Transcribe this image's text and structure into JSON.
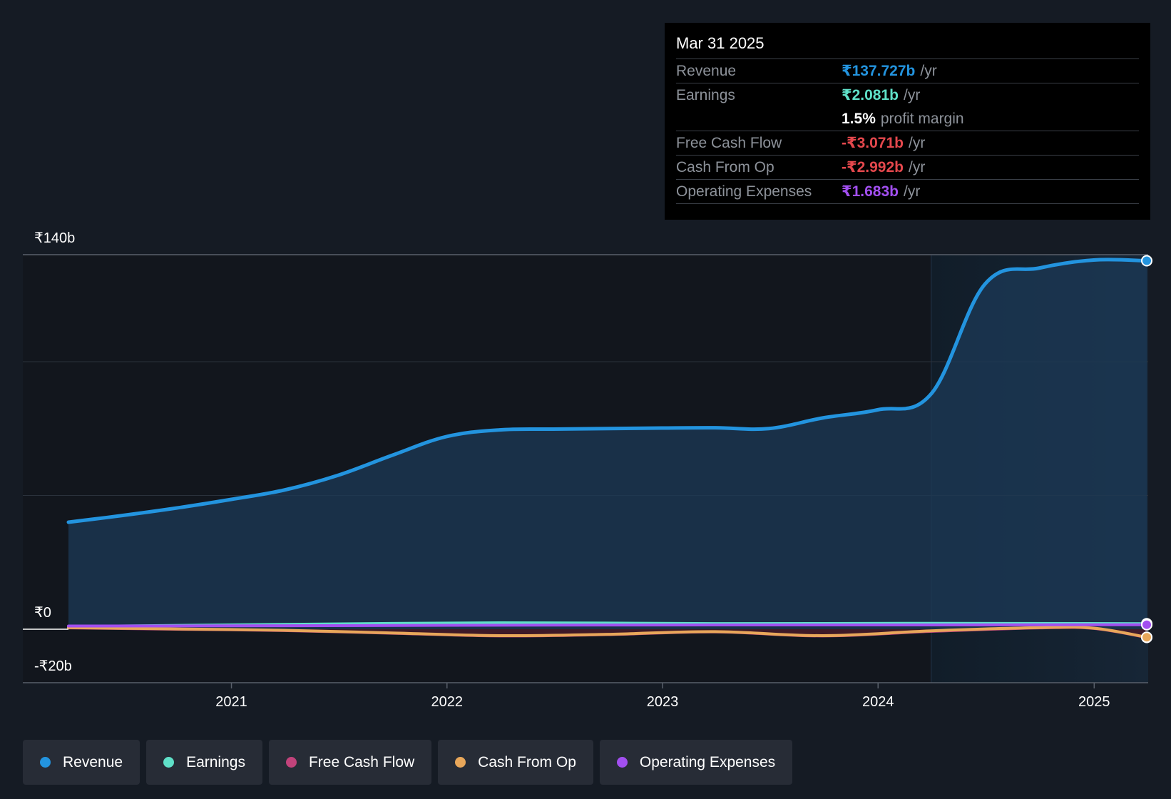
{
  "chart_data": {
    "type": "area",
    "currency": "₹",
    "y_tick_labels": [
      "₹140b",
      "₹0",
      "-₹20b"
    ],
    "ylim": [
      -20,
      140
    ],
    "x_tick_labels": [
      "2021",
      "2022",
      "2023",
      "2024",
      "2025"
    ],
    "xlim": [
      "2020-03-31",
      "2025-03-31"
    ],
    "forecast_region_start": "2024-03-31",
    "grid": true,
    "legend_position": "bottom",
    "series": [
      {
        "name": "Revenue",
        "color": "#2394df",
        "filled": true,
        "points": [
          [
            "2020-03-31",
            40.0
          ],
          [
            "2020-06-30",
            42.5
          ],
          [
            "2020-09-30",
            45.3
          ],
          [
            "2020-12-31",
            48.5
          ],
          [
            "2021-03-31",
            52.0
          ],
          [
            "2021-06-30",
            57.5
          ],
          [
            "2021-09-30",
            65.0
          ],
          [
            "2021-12-31",
            72.0
          ],
          [
            "2022-03-31",
            74.5
          ],
          [
            "2022-06-30",
            74.8
          ],
          [
            "2022-09-30",
            75.0
          ],
          [
            "2022-12-31",
            75.2
          ],
          [
            "2023-03-31",
            75.3
          ],
          [
            "2023-06-30",
            75.0
          ],
          [
            "2023-09-30",
            79.0
          ],
          [
            "2023-12-31",
            82.0
          ],
          [
            "2024-03-31",
            88.0
          ],
          [
            "2024-06-30",
            129.0
          ],
          [
            "2024-09-30",
            135.0
          ],
          [
            "2024-12-31",
            138.0
          ],
          [
            "2025-03-31",
            137.727
          ]
        ]
      },
      {
        "name": "Earnings",
        "color": "#5fe0c8",
        "filled": false,
        "points": [
          [
            "2020-03-31",
            1.0
          ],
          [
            "2021-03-31",
            1.8
          ],
          [
            "2022-03-31",
            2.4
          ],
          [
            "2023-03-31",
            2.1
          ],
          [
            "2024-03-31",
            2.2
          ],
          [
            "2025-03-31",
            2.081
          ]
        ]
      },
      {
        "name": "Free Cash Flow",
        "color": "#c2437b",
        "filled": true,
        "points": [
          [
            "2020-03-31",
            0.5
          ],
          [
            "2020-09-30",
            0.0
          ],
          [
            "2021-03-31",
            -0.5
          ],
          [
            "2021-09-30",
            -1.5
          ],
          [
            "2022-03-31",
            -2.5
          ],
          [
            "2022-09-30",
            -2.0
          ],
          [
            "2023-03-31",
            -1.0
          ],
          [
            "2023-09-30",
            -2.5
          ],
          [
            "2024-03-31",
            -0.8
          ],
          [
            "2024-09-30",
            0.5
          ],
          [
            "2024-12-31",
            0.3
          ],
          [
            "2025-03-31",
            -3.071
          ]
        ]
      },
      {
        "name": "Cash From Op",
        "color": "#e8a75a",
        "filled": false,
        "points": [
          [
            "2020-03-31",
            0.6
          ],
          [
            "2020-09-30",
            0.1
          ],
          [
            "2021-03-31",
            -0.4
          ],
          [
            "2021-09-30",
            -1.4
          ],
          [
            "2022-03-31",
            -2.4
          ],
          [
            "2022-09-30",
            -1.9
          ],
          [
            "2023-03-31",
            -0.9
          ],
          [
            "2023-09-30",
            -2.4
          ],
          [
            "2024-03-31",
            -0.6
          ],
          [
            "2024-09-30",
            0.6
          ],
          [
            "2024-12-31",
            0.4
          ],
          [
            "2025-03-31",
            -2.992
          ]
        ]
      },
      {
        "name": "Operating Expenses",
        "color": "#a24ff0",
        "filled": false,
        "points": [
          [
            "2020-03-31",
            1.2
          ],
          [
            "2021-03-31",
            1.3
          ],
          [
            "2022-03-31",
            1.5
          ],
          [
            "2023-03-31",
            1.6
          ],
          [
            "2024-03-31",
            1.6
          ],
          [
            "2025-03-31",
            1.683
          ]
        ]
      }
    ]
  },
  "tooltip": {
    "date": "Mar 31 2025",
    "rows": [
      {
        "name": "Revenue",
        "value": "₹137.727b",
        "unit": "/yr",
        "color": "#2394df"
      },
      {
        "name": "Earnings",
        "value": "₹2.081b",
        "unit": "/yr",
        "color": "#5fe0c8"
      },
      {
        "name": "",
        "value": "1.5%",
        "unit": "profit margin",
        "color": "#ffffff"
      },
      {
        "name": "Free Cash Flow",
        "value": "-₹3.071b",
        "unit": "/yr",
        "color": "#e5484d"
      },
      {
        "name": "Cash From Op",
        "value": "-₹2.992b",
        "unit": "/yr",
        "color": "#e5484d"
      },
      {
        "name": "Operating Expenses",
        "value": "₹1.683b",
        "unit": "/yr",
        "color": "#a24ff0"
      }
    ]
  },
  "legend": [
    {
      "label": "Revenue",
      "color": "#2394df"
    },
    {
      "label": "Earnings",
      "color": "#5fe0c8"
    },
    {
      "label": "Free Cash Flow",
      "color": "#c2437b"
    },
    {
      "label": "Cash From Op",
      "color": "#e8a75a"
    },
    {
      "label": "Operating Expenses",
      "color": "#a24ff0"
    }
  ]
}
